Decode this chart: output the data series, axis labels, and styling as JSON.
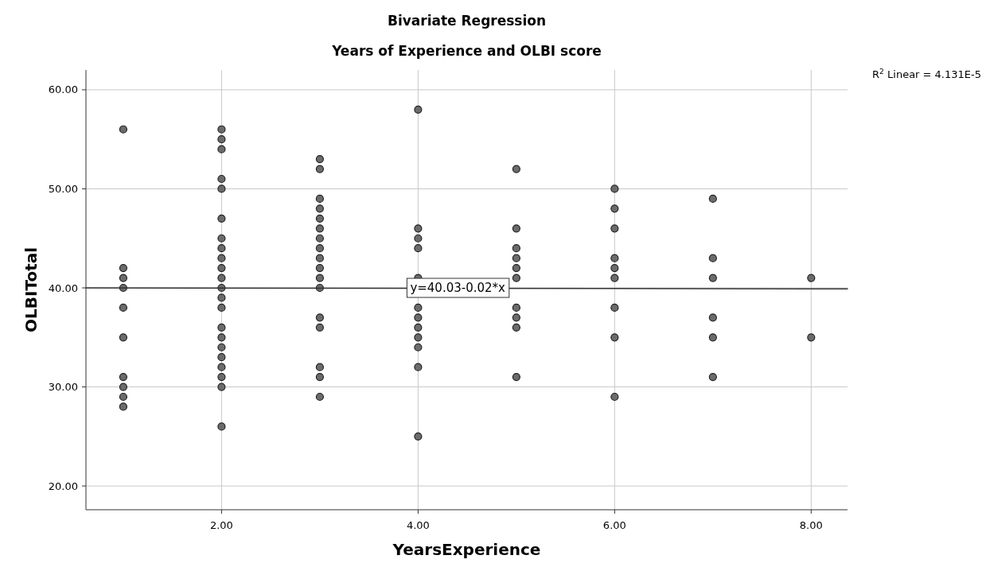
{
  "chart_data": {
    "type": "scatter",
    "title": "Bivariate Regression",
    "subtitle": "Years of Experience and OLBI score",
    "xlabel": "YearsExperience",
    "ylabel": "OLBITotal",
    "xlim": [
      0.62,
      8.37
    ],
    "ylim": [
      17.6,
      62
    ],
    "xticks": [
      {
        "value": 2,
        "label": "2.00"
      },
      {
        "value": 4,
        "label": "4.00"
      },
      {
        "value": 6,
        "label": "6.00"
      },
      {
        "value": 8,
        "label": "8.00"
      }
    ],
    "yticks": [
      {
        "value": 20,
        "label": "20.00"
      },
      {
        "value": 30,
        "label": "30.00"
      },
      {
        "value": 40,
        "label": "40.00"
      },
      {
        "value": 50,
        "label": "50.00"
      },
      {
        "value": 60,
        "label": "60.00"
      }
    ],
    "grid": true,
    "series": [
      {
        "color": "#6b6b6b",
        "marker": "circle",
        "x": [
          1,
          1,
          1,
          1,
          1,
          1,
          1,
          1,
          1,
          1,
          2,
          2,
          2,
          2,
          2,
          2,
          2,
          2,
          2,
          2,
          2,
          2,
          2,
          2,
          2,
          2,
          2,
          2,
          2,
          2,
          2,
          2,
          3,
          3,
          3,
          3,
          3,
          3,
          3,
          3,
          3,
          3,
          3,
          3,
          3,
          3,
          3,
          3,
          3,
          4,
          4,
          4,
          4,
          4,
          4,
          4,
          4,
          4,
          4,
          4,
          4,
          5,
          5,
          5,
          5,
          5,
          5,
          5,
          5,
          5,
          5,
          6,
          6,
          6,
          6,
          6,
          6,
          6,
          6,
          6,
          7,
          7,
          7,
          7,
          7,
          7,
          8,
          8
        ],
        "values": [
          56,
          42,
          41,
          40,
          38,
          35,
          31,
          30,
          29,
          28,
          56,
          55,
          54,
          51,
          50,
          47,
          45,
          44,
          43,
          42,
          41,
          40,
          39,
          38,
          36,
          35,
          34,
          33,
          32,
          31,
          30,
          26,
          53,
          52,
          49,
          48,
          47,
          46,
          45,
          44,
          43,
          42,
          41,
          40,
          37,
          36,
          32,
          31,
          29,
          58,
          46,
          45,
          44,
          41,
          38,
          37,
          36,
          35,
          34,
          32,
          25,
          52,
          46,
          44,
          43,
          42,
          41,
          38,
          37,
          36,
          31,
          50,
          48,
          46,
          43,
          42,
          41,
          38,
          35,
          29,
          49,
          43,
          41,
          37,
          35,
          31,
          41,
          35
        ]
      },
      {
        "type": "line",
        "color": "#333333",
        "line_style": "solid",
        "marker": "none",
        "x": [
          0.62,
          8.37
        ],
        "values": [
          40.0,
          39.9
        ]
      }
    ],
    "annotations": [
      {
        "text": "y=40.03-0.02*x",
        "x": 4,
        "y": 40
      },
      "R$^{2}$ Linear = 4.131E-5"
    ]
  }
}
